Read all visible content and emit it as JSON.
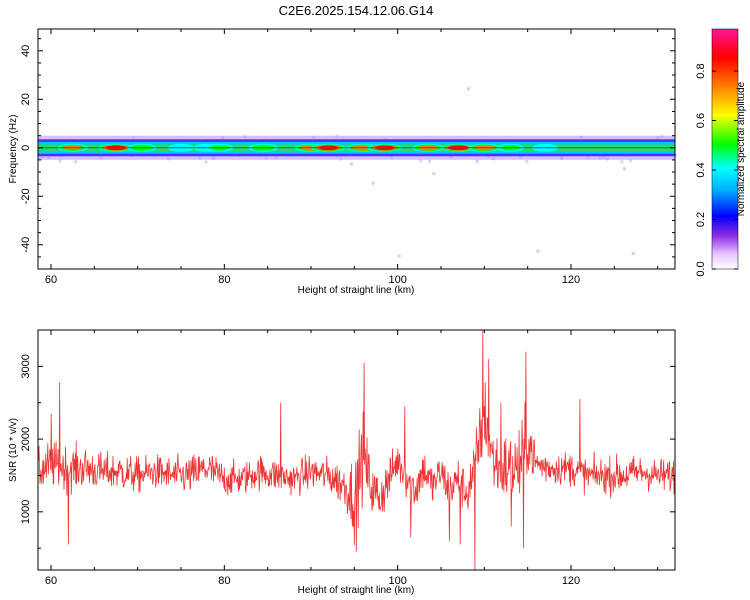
{
  "title": "C2E6.2025.154.12.06.G14",
  "chart_data": [
    {
      "type": "heatmap",
      "xlabel": "Height of straight line (km)",
      "ylabel": "Frequency (Hz)",
      "xlim": [
        58.5,
        132
      ],
      "ylim": [
        -50,
        49
      ],
      "xticks": [
        60,
        80,
        100,
        120
      ],
      "yticks": [
        -40,
        -20,
        0,
        20,
        40
      ],
      "ytick_labels": [
        "-40",
        "-20",
        "0",
        "20",
        "40"
      ],
      "colorbar": {
        "label": "Normalized spectral amplitude",
        "range": [
          0,
          0.97
        ],
        "ticks": [
          0.0,
          0.2,
          0.4,
          0.6,
          0.8
        ],
        "tick_labels": [
          "0.0",
          "0.2",
          "0.4",
          "0.6",
          "0.8"
        ]
      },
      "centerline_frequency": 0,
      "band_halfwidth_hz": 3.5,
      "peak_blobs": [
        {
          "x": 62.5,
          "amp": 0.75
        },
        {
          "x": 67.5,
          "amp": 0.97
        },
        {
          "x": 70.5,
          "amp": 0.7
        },
        {
          "x": 75,
          "amp": 0.55
        },
        {
          "x": 78,
          "amp": 0.55
        },
        {
          "x": 79.5,
          "amp": 0.6
        },
        {
          "x": 84.5,
          "amp": 0.7
        },
        {
          "x": 90,
          "amp": 0.85
        },
        {
          "x": 92,
          "amp": 0.95
        },
        {
          "x": 96,
          "amp": 0.85
        },
        {
          "x": 98.5,
          "amp": 0.95
        },
        {
          "x": 103.5,
          "amp": 0.8
        },
        {
          "x": 107,
          "amp": 0.97
        },
        {
          "x": 110,
          "amp": 0.8
        },
        {
          "x": 113,
          "amp": 0.6
        },
        {
          "x": 117,
          "amp": 0.5
        }
      ]
    },
    {
      "type": "line",
      "xlabel": "Height of straight line (km)",
      "ylabel": "SNR (10 * v/v)",
      "xlim": [
        58.5,
        132
      ],
      "ylim": [
        200,
        3500
      ],
      "xticks": [
        60,
        80,
        100,
        120
      ],
      "yticks": [
        1000,
        2000,
        3000
      ],
      "series": [
        {
          "color": "#ee3333",
          "profile": [
            [
              58.5,
              1550,
              280
            ],
            [
              60,
              1650,
              320
            ],
            [
              62,
              1600,
              300
            ],
            [
              64,
              1600,
              280
            ],
            [
              66,
              1550,
              250
            ],
            [
              68,
              1550,
              260
            ],
            [
              70,
              1500,
              240
            ],
            [
              72,
              1550,
              230
            ],
            [
              74,
              1500,
              240
            ],
            [
              76,
              1500,
              260
            ],
            [
              78,
              1600,
              270
            ],
            [
              80,
              1450,
              230
            ],
            [
              82,
              1450,
              220
            ],
            [
              84,
              1550,
              230
            ],
            [
              86,
              1500,
              230
            ],
            [
              88,
              1450,
              220
            ],
            [
              90,
              1550,
              240
            ],
            [
              92,
              1500,
              240
            ],
            [
              94,
              1350,
              300
            ],
            [
              95,
              1200,
              550
            ],
            [
              96,
              1800,
              550
            ],
            [
              97,
              1300,
              350
            ],
            [
              98,
              1200,
              350
            ],
            [
              99,
              1450,
              300
            ],
            [
              100,
              1700,
              260
            ],
            [
              101,
              1500,
              300
            ],
            [
              102,
              1300,
              320
            ],
            [
              103,
              1600,
              280
            ],
            [
              104,
              1350,
              300
            ],
            [
              105,
              1550,
              260
            ],
            [
              106,
              1300,
              280
            ],
            [
              107,
              1450,
              300
            ],
            [
              108,
              1250,
              300
            ],
            [
              109,
              1650,
              450
            ],
            [
              110,
              2400,
              550
            ],
            [
              111,
              1700,
              450
            ],
            [
              112,
              1600,
              450
            ],
            [
              113,
              1600,
              500
            ],
            [
              114,
              1600,
              550
            ],
            [
              115,
              2000,
              450
            ],
            [
              116,
              1650,
              260
            ],
            [
              118,
              1600,
              220
            ],
            [
              120,
              1600,
              230
            ],
            [
              122,
              1500,
              220
            ],
            [
              124,
              1500,
              240
            ],
            [
              126,
              1500,
              250
            ],
            [
              128,
              1550,
              220
            ],
            [
              130,
              1500,
              230
            ],
            [
              132,
              1500,
              240
            ]
          ],
          "spikes": [
            [
              60,
              2350
            ],
            [
              61,
              2780
            ],
            [
              96.1,
              3050
            ],
            [
              109.8,
              3500
            ],
            [
              110.5,
              3100
            ],
            [
              114.8,
              3200
            ],
            [
              111.9,
              2500
            ],
            [
              86.5,
              2500
            ],
            [
              121,
              2550
            ],
            [
              100.8,
              2450
            ],
            [
              95.2,
              450
            ],
            [
              108.9,
              200
            ],
            [
              101.5,
              650
            ],
            [
              107.2,
              550
            ],
            [
              113.1,
              800
            ],
            [
              114.5,
              500
            ],
            [
              62,
              550
            ],
            [
              106,
              600
            ]
          ]
        }
      ]
    }
  ]
}
